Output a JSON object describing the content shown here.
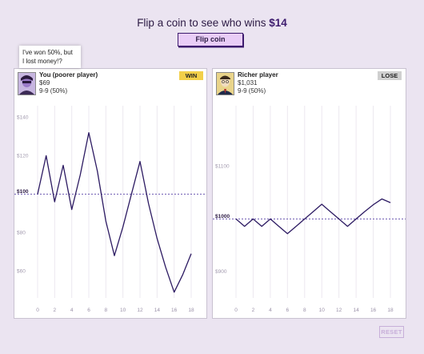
{
  "headline": {
    "prefix": "Flip a coin to see who wins ",
    "amount": "$14"
  },
  "flip_button_label": "Flip coin",
  "reset_button_label": "RESET",
  "tooltip": {
    "line1": "I've won 50%, but",
    "line2": "I lost money!?"
  },
  "players": [
    {
      "name": "You (poorer player)",
      "money": "$69",
      "record": "9-9 (50%)",
      "result": "WIN",
      "result_color": "#f2cf4a"
    },
    {
      "name": "Richer player",
      "money": "$1,031",
      "record": "9-9 (50%)",
      "result": "LOSE",
      "result_color": "#d0d0d0"
    }
  ],
  "colors": {
    "line": "#2c1a62",
    "baseline": "#6b57b0",
    "background": "#ebe4f1"
  },
  "chart_data": [
    {
      "type": "line",
      "x": [
        0,
        1,
        2,
        3,
        4,
        5,
        6,
        7,
        8,
        9,
        10,
        11,
        12,
        13,
        14,
        15,
        16,
        17,
        18
      ],
      "y": [
        100,
        120,
        96,
        115,
        92,
        110,
        132,
        112,
        86,
        68,
        83,
        100,
        117,
        95,
        77,
        62,
        49,
        58,
        69
      ],
      "xticks": [
        0,
        2,
        4,
        6,
        8,
        10,
        12,
        14,
        16,
        18
      ],
      "yticks": [
        60,
        80,
        100,
        120,
        140
      ],
      "ytick_labels": [
        "$60",
        "$80",
        "$100",
        "$120",
        "$140"
      ],
      "baseline": 100,
      "baseline_label": "$100",
      "ylim": [
        46,
        146
      ],
      "xlim": [
        0,
        18
      ]
    },
    {
      "type": "line",
      "x": [
        0,
        1,
        2,
        3,
        4,
        5,
        6,
        7,
        8,
        9,
        10,
        11,
        12,
        13,
        14,
        15,
        16,
        17,
        18
      ],
      "y": [
        1000,
        986,
        1000,
        986,
        1000,
        986,
        972,
        986,
        1000,
        1014,
        1028,
        1014,
        1000,
        986,
        1000,
        1014,
        1027,
        1038,
        1031
      ],
      "xticks": [
        0,
        2,
        4,
        6,
        8,
        10,
        12,
        14,
        16,
        18
      ],
      "yticks": [
        900,
        1000,
        1100
      ],
      "ytick_labels": [
        "$900",
        "$1000",
        "$1100"
      ],
      "baseline": 1000,
      "baseline_label": "$1000",
      "ylim": [
        850,
        1215
      ],
      "xlim": [
        0,
        18
      ]
    }
  ]
}
